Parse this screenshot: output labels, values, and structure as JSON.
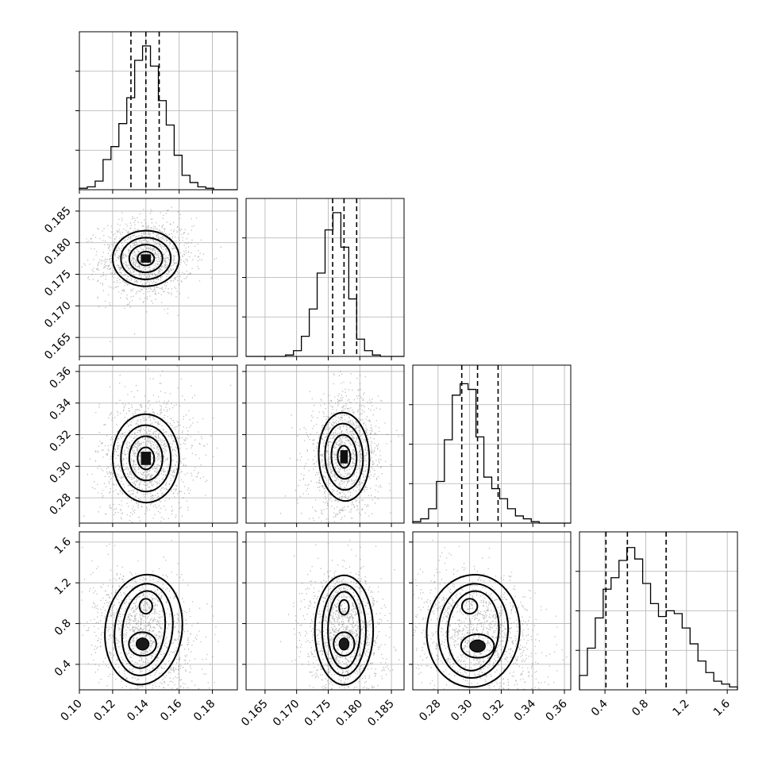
{
  "chart_data": {
    "type": "corner",
    "grid": true,
    "parameters": [
      {
        "range": [
          0.1,
          0.195
        ],
        "ticks": [
          "0.10",
          "0.12",
          "0.14",
          "0.16",
          "0.18"
        ],
        "tick_values": [
          0.1,
          0.12,
          0.14,
          0.16,
          0.18
        ],
        "median": 0.14,
        "quantiles": [
          0.131,
          0.14,
          0.148
        ],
        "hist": [
          0.01,
          0.02,
          0.06,
          0.21,
          0.3,
          0.46,
          0.64,
          0.9,
          1.0,
          0.86,
          0.62,
          0.45,
          0.24,
          0.1,
          0.05,
          0.02,
          0.01,
          0.0,
          0.0,
          0.0
        ]
      },
      {
        "range": [
          0.162,
          0.187
        ],
        "ticks": [
          "0.165",
          "0.170",
          "0.175",
          "0.180",
          "0.185"
        ],
        "tick_values": [
          0.165,
          0.17,
          0.175,
          0.18,
          0.185
        ],
        "median": 0.1775,
        "quantiles": [
          0.1757,
          0.1775,
          0.1795
        ],
        "hist": [
          0.0,
          0.0,
          0.0,
          0.0,
          0.0,
          0.01,
          0.04,
          0.14,
          0.33,
          0.58,
          0.88,
          1.0,
          0.76,
          0.4,
          0.12,
          0.04,
          0.01,
          0.0,
          0.0,
          0.0
        ]
      },
      {
        "range": [
          0.264,
          0.364
        ],
        "ticks": [
          "0.28",
          "0.30",
          "0.32",
          "0.34",
          "0.36"
        ],
        "tick_values": [
          0.28,
          0.3,
          0.32,
          0.34,
          0.36
        ],
        "median": 0.305,
        "quantiles": [
          0.295,
          0.305,
          0.318
        ],
        "hist": [
          0.01,
          0.03,
          0.1,
          0.29,
          0.58,
          0.89,
          0.97,
          0.93,
          0.6,
          0.32,
          0.24,
          0.17,
          0.1,
          0.05,
          0.03,
          0.01,
          0.0,
          0.0,
          0.0,
          0.0
        ]
      },
      {
        "range": [
          0.15,
          1.7
        ],
        "ticks": [
          "0.4",
          "0.8",
          "1.2",
          "1.6"
        ],
        "tick_values": [
          0.4,
          0.8,
          1.2,
          1.6
        ],
        "median": 0.62,
        "quantiles": [
          0.41,
          0.62,
          1.0
        ],
        "hist": [
          0.1,
          0.29,
          0.5,
          0.7,
          0.78,
          0.9,
          0.99,
          0.91,
          0.74,
          0.6,
          0.51,
          0.55,
          0.53,
          0.43,
          0.32,
          0.2,
          0.12,
          0.06,
          0.04,
          0.02
        ]
      }
    ],
    "pairs": [
      {
        "row": 1,
        "col": 0,
        "mx": 0.14,
        "my": 0.1775,
        "sx": 0.01,
        "sy": 0.0022,
        "rho": 0.05,
        "bimodal": false
      },
      {
        "row": 2,
        "col": 0,
        "mx": 0.14,
        "my": 0.305,
        "sx": 0.01,
        "sy": 0.014,
        "rho": 0.05,
        "bimodal": false
      },
      {
        "row": 2,
        "col": 1,
        "mx": 0.1775,
        "my": 0.306,
        "sx": 0.002,
        "sy": 0.014,
        "rho": 0.1,
        "bimodal": false
      },
      {
        "row": 3,
        "col": 0,
        "mx": 0.138,
        "my": 0.62,
        "sx": 0.011,
        "sy": 0.28,
        "rho": -0.3,
        "bimodal": true,
        "mode2": [
          0.14,
          0.97
        ]
      },
      {
        "row": 3,
        "col": 1,
        "mx": 0.1775,
        "my": 0.62,
        "sx": 0.0022,
        "sy": 0.28,
        "rho": 0.0,
        "bimodal": true,
        "mode2": [
          0.1775,
          0.96
        ]
      },
      {
        "row": 3,
        "col": 2,
        "mx": 0.305,
        "my": 0.6,
        "sx": 0.014,
        "sy": 0.28,
        "rho": -0.2,
        "bimodal": true,
        "mode2": [
          0.3,
          0.97
        ]
      }
    ]
  }
}
